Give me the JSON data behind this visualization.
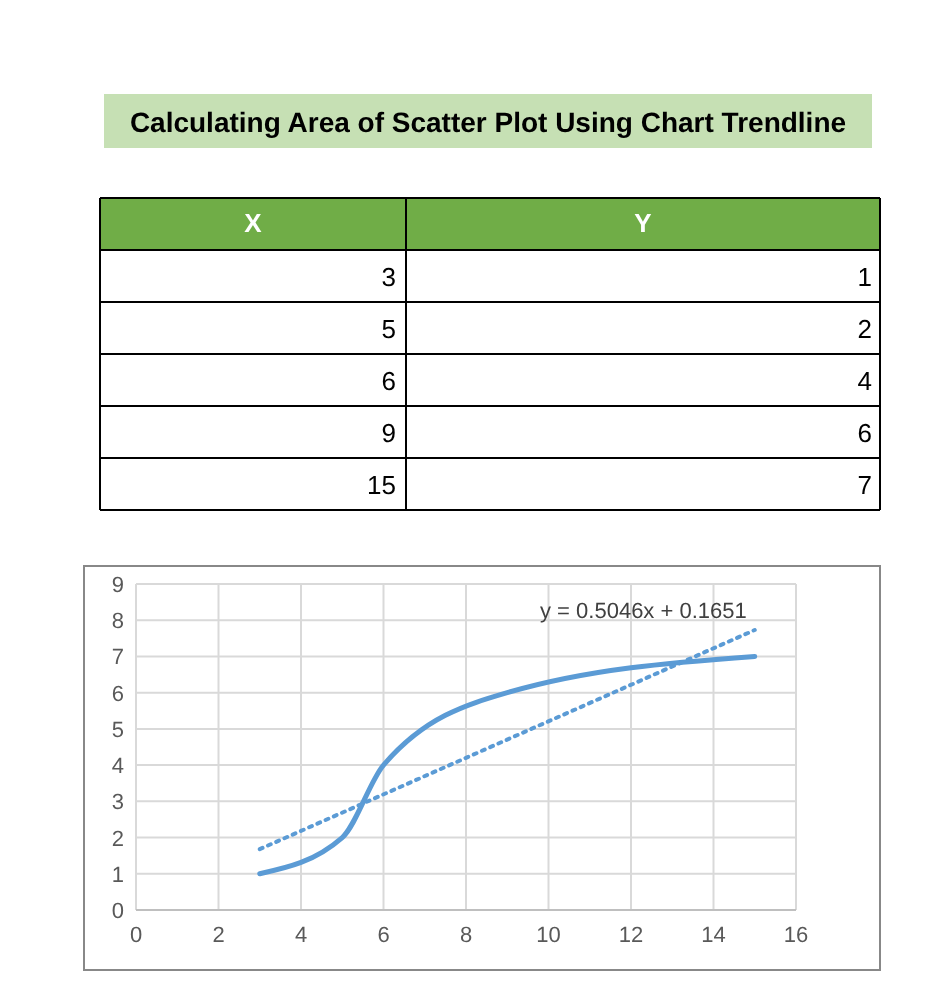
{
  "chart_data": [
    {
      "type": "other",
      "title": "Calculating Area of Scatter Plot Using Chart Trendline",
      "annotations": [
        "X",
        "Y",
        "3",
        "1",
        "5",
        "2",
        "6",
        "4",
        "9",
        "6",
        "15",
        "7"
      ]
    },
    {
      "type": "line",
      "x": [
        3,
        5,
        6,
        9,
        15
      ],
      "series": [
        {
          "type": "line",
          "color": "#5b9bd5",
          "values": [
            1,
            2,
            4,
            6,
            7
          ]
        },
        {
          "type": "line",
          "color": "#5b9bd5",
          "line_style": "dotted",
          "x": [
            3,
            15
          ],
          "values": [
            1.68,
            7.73
          ]
        }
      ],
      "annotations": [
        "y = 0.5046x + 0.1651"
      ],
      "xlim": [
        0,
        16
      ],
      "xticks": [
        0,
        2,
        4,
        6,
        8,
        10,
        12,
        14,
        16
      ],
      "ylim": [
        0,
        9
      ],
      "yticks": [
        0,
        1,
        2,
        3,
        4,
        5,
        6,
        7,
        8,
        9
      ],
      "grid": true,
      "marker": "none"
    }
  ]
}
